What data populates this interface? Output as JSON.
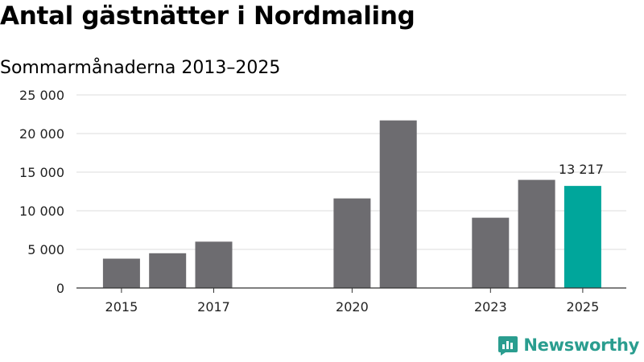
{
  "title": "Antal gästnätter i Nordmaling",
  "subtitle": "Sommarmånaderna 2013–2025",
  "brand": {
    "name": "Newsworthy",
    "color": "#2a9d8f"
  },
  "colors": {
    "bar": "#6d6c70",
    "highlight": "#00a69b",
    "grid": "#dcdcdc",
    "axis": "#333333"
  },
  "chart_data": {
    "type": "bar",
    "x": [
      2013,
      2014,
      2015,
      2016,
      2017,
      2018,
      2019,
      2020,
      2021,
      2022,
      2023,
      2024,
      2025
    ],
    "values": [
      null,
      null,
      3800,
      4500,
      6000,
      null,
      null,
      11600,
      21700,
      null,
      9100,
      14000,
      13217
    ],
    "highlight": {
      "x": 2025,
      "label": "13 217"
    },
    "xtick_labels": {
      "2015": "2015",
      "2017": "2017",
      "2020": "2020",
      "2023": "2023",
      "2025": "2025"
    },
    "yticks": [
      0,
      5000,
      10000,
      15000,
      20000,
      25000
    ],
    "ytick_labels": [
      "0",
      "5 000",
      "10 000",
      "15 000",
      "20 000",
      "25 000"
    ],
    "ylim": [
      0,
      25000
    ],
    "xlabel": "",
    "ylabel": "",
    "grid": true
  }
}
